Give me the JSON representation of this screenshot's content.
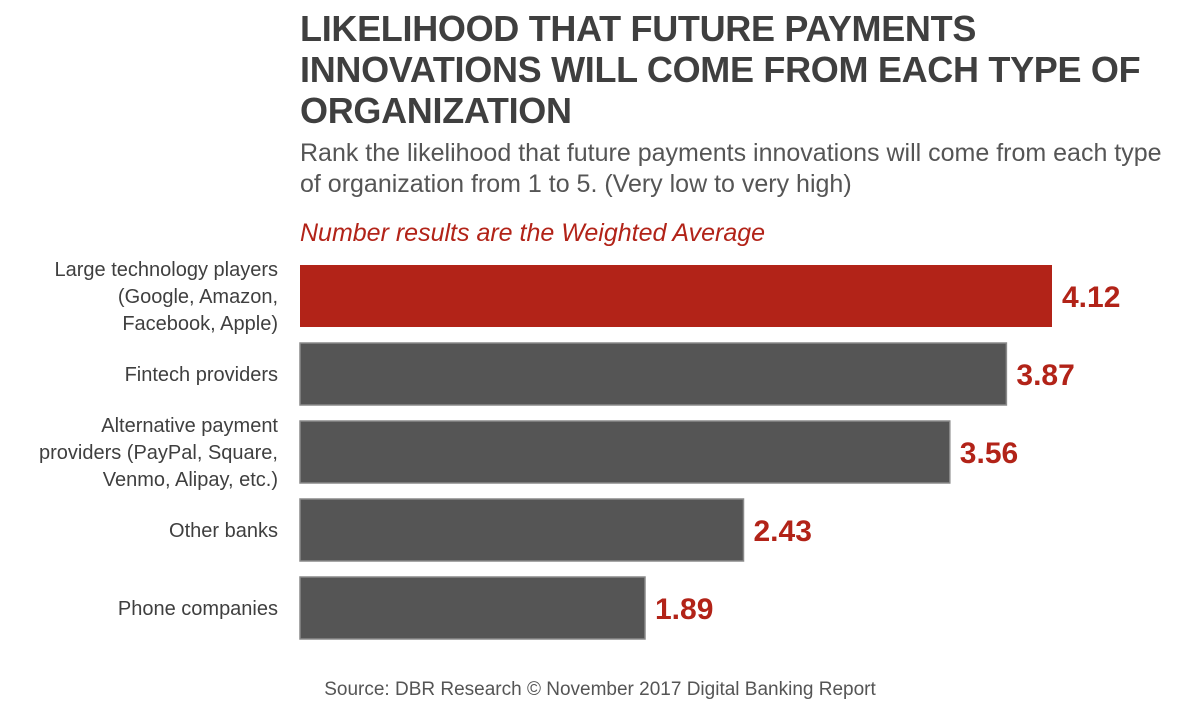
{
  "chart_data": {
    "type": "bar",
    "orientation": "horizontal",
    "title": "LIKELIHOOD THAT FUTURE PAYMENTS INNOVATIONS WILL COME FROM EACH TYPE OF ORGANIZATION",
    "subtitle": "Rank the likelihood that future payments innovations will come from each type of organization from 1 to 5. (Very low to very high)",
    "note": "Number results are the Weighted Average",
    "source": "Source: DBR Research © November 2017 Digital Banking Report",
    "categories": [
      [
        "Large technology players",
        "(Google, Amazon,",
        "Facebook, Apple)"
      ],
      [
        "Fintech providers"
      ],
      [
        "Alternative payment",
        "providers (PayPal, Square,",
        "Venmo, Alipay, etc.)"
      ],
      [
        "Other banks"
      ],
      [
        "Phone companies"
      ]
    ],
    "values": [
      4.12,
      3.87,
      3.56,
      2.43,
      1.89
    ],
    "value_labels": [
      "4.12",
      "3.87",
      "3.56",
      "2.43",
      "1.89"
    ],
    "highlight_index": 0,
    "xlim": [
      0,
      4.12
    ],
    "grid": false,
    "legend": "none",
    "colors": {
      "highlight": "#b22318",
      "bar": "#555555",
      "value_label": "#b22318",
      "category_label": "#3f3f3f",
      "title": "#3f3f3f"
    }
  }
}
